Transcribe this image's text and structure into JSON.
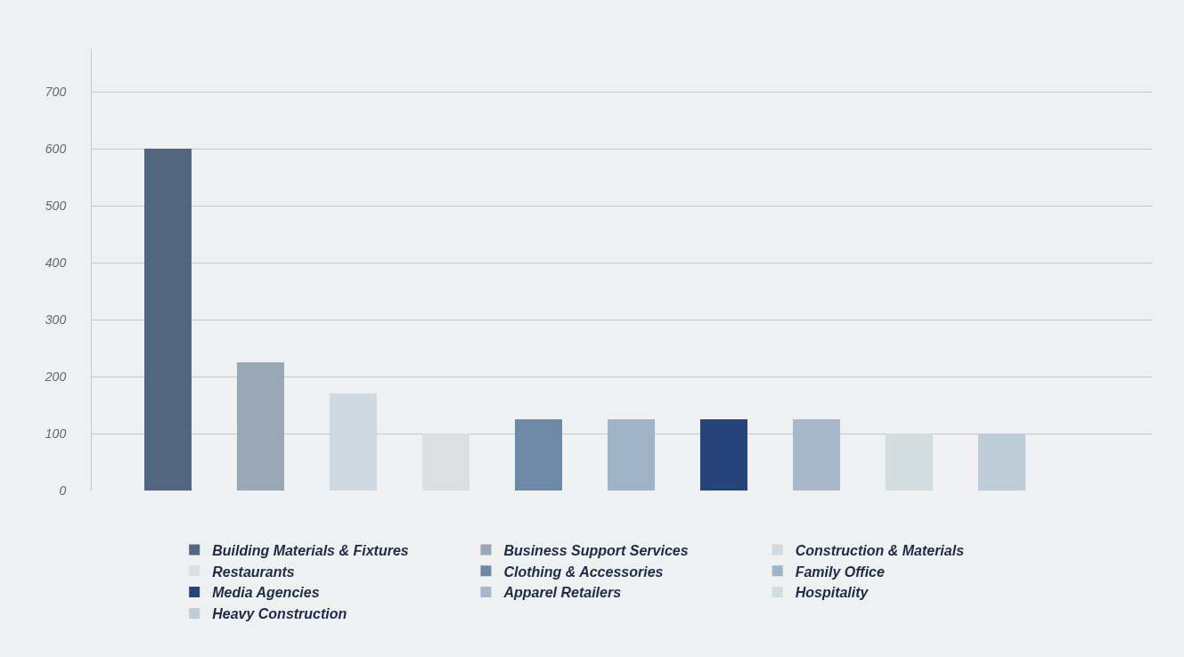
{
  "chart_data": {
    "type": "bar",
    "categories": [
      null,
      null,
      null,
      null,
      null,
      null,
      null,
      null,
      null,
      null
    ],
    "series": [
      {
        "name": "Building Materials & Fixtures",
        "color": "#52667f",
        "values": [
          600,
          null,
          null,
          null,
          null,
          null,
          null,
          null,
          null,
          null
        ]
      },
      {
        "name": "Business Support Services",
        "color": "#99a8b4",
        "values": [
          null,
          225,
          null,
          null,
          null,
          null,
          null,
          null,
          null,
          null
        ]
      },
      {
        "name": "Construction & Materials",
        "color": "#cfd9df",
        "values": [
          null,
          null,
          170,
          null,
          null,
          null,
          null,
          null,
          null,
          null
        ]
      },
      {
        "name": "Restaurants",
        "color": "#dcdfdf",
        "values": [
          null,
          null,
          null,
          100,
          null,
          null,
          null,
          null,
          null,
          null
        ]
      },
      {
        "name": "Clothing & Accessories",
        "color": "#6d89a5",
        "values": [
          null,
          null,
          null,
          null,
          125,
          null,
          null,
          null,
          null,
          null
        ]
      },
      {
        "name": "Family Office",
        "color": "#a0b4c8",
        "values": [
          null,
          null,
          null,
          null,
          null,
          125,
          null,
          null,
          null,
          null
        ]
      },
      {
        "name": "Media Agencies",
        "color": "#26437a",
        "values": [
          null,
          null,
          null,
          null,
          null,
          null,
          125,
          null,
          null,
          null
        ]
      },
      {
        "name": "Apparel Retailers",
        "color": "#a6b8ca",
        "values": [
          null,
          null,
          null,
          null,
          null,
          null,
          null,
          125,
          null,
          null
        ]
      },
      {
        "name": "Hospitality",
        "color": "#d3dcde",
        "values": [
          null,
          null,
          null,
          null,
          null,
          null,
          null,
          null,
          100,
          null
        ]
      },
      {
        "name": "Heavy Construction",
        "color": "#bfcdd8",
        "values": [
          null,
          null,
          null,
          null,
          null,
          null,
          null,
          null,
          null,
          100
        ]
      }
    ],
    "ylim": [
      0,
      775
    ],
    "yticks": [
      0,
      100,
      200,
      300,
      400,
      500,
      600,
      700
    ],
    "stacked": true,
    "grid": "y",
    "legend": "bottom",
    "tick_labels": "y"
  }
}
